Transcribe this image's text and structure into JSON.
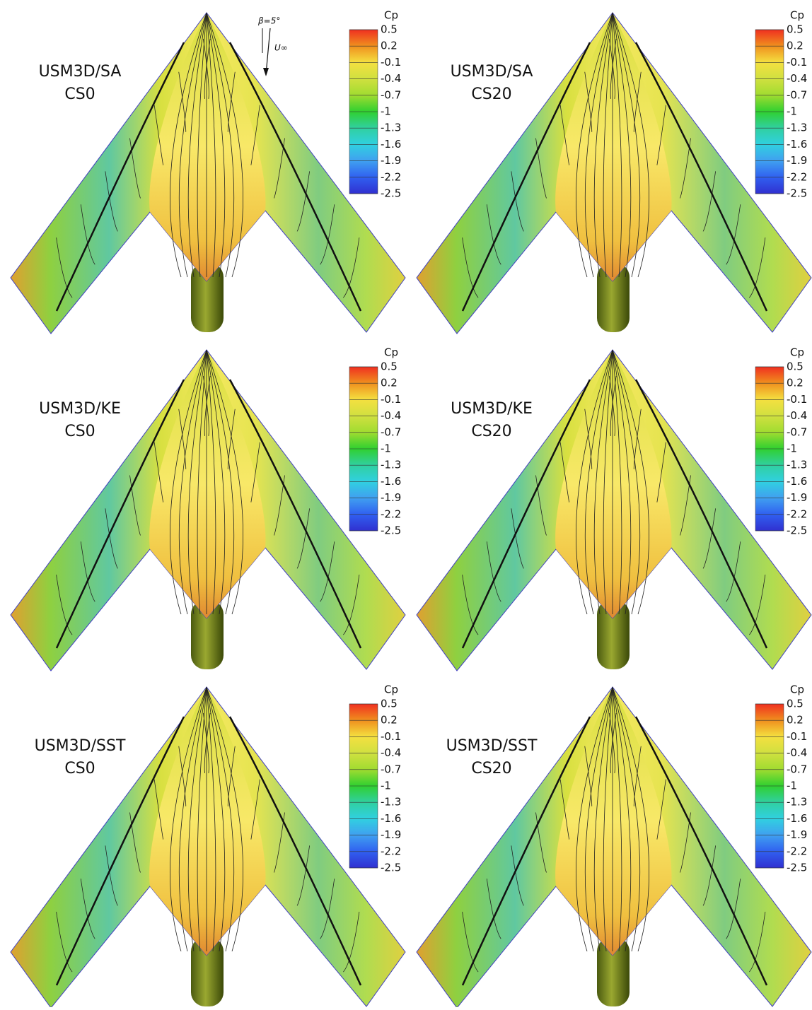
{
  "panels": [
    {
      "label": [
        "USM3D/SA",
        "CS0"
      ],
      "colorbar": {
        "title": "Cp",
        "ticks": [
          0.5,
          0.2,
          -0.1,
          -0.4,
          -0.7,
          -1,
          -1.3,
          -1.6,
          -1.9,
          -2.2,
          -2.5
        ]
      }
    },
    {
      "label": [
        "USM3D/SA",
        "CS20"
      ],
      "colorbar": {
        "title": "Cp",
        "ticks": [
          0.5,
          0.2,
          -0.1,
          -0.4,
          -0.7,
          -1,
          -1.3,
          -1.6,
          -1.9,
          -2.2,
          -2.5
        ]
      }
    },
    {
      "label": [
        "USM3D/KE",
        "CS0"
      ],
      "colorbar": {
        "title": "Cp",
        "ticks": [
          0.5,
          0.2,
          -0.1,
          -0.4,
          -0.7,
          -1,
          -1.3,
          -1.6,
          -1.9,
          -2.2,
          -2.5
        ]
      }
    },
    {
      "label": [
        "USM3D/KE",
        "CS20"
      ],
      "colorbar": {
        "title": "Cp",
        "ticks": [
          0.5,
          0.2,
          -0.1,
          -0.4,
          -0.7,
          -1,
          -1.3,
          -1.6,
          -1.9,
          -2.2,
          -2.5
        ]
      }
    },
    {
      "label": [
        "USM3D/SST",
        "CS0"
      ],
      "colorbar": {
        "title": "Cp",
        "ticks": [
          0.5,
          0.2,
          -0.1,
          -0.4,
          -0.7,
          -1,
          -1.3,
          -1.6,
          -1.9,
          -2.2,
          -2.5
        ]
      }
    },
    {
      "label": [
        "USM3D/SST",
        "CS20"
      ],
      "colorbar": {
        "title": "Cp",
        "ticks": [
          0.5,
          0.2,
          -0.1,
          -0.4,
          -0.7,
          -1,
          -1.3,
          -1.6,
          -1.9,
          -2.2,
          -2.5
        ]
      }
    }
  ],
  "annotation": {
    "sideslip": "β=5°",
    "freestream": "U∞"
  }
}
